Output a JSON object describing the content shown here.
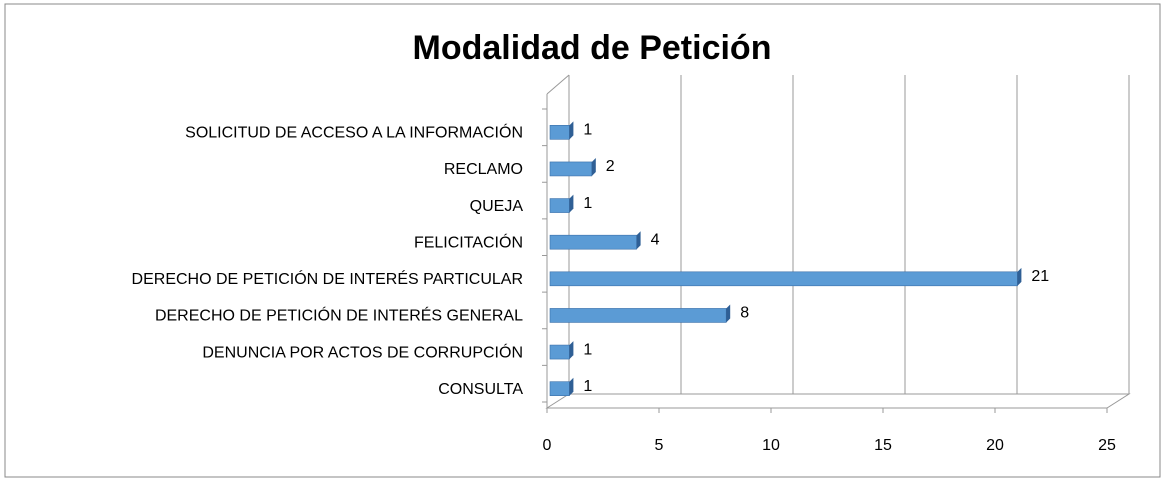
{
  "chart_data": {
    "type": "hbar",
    "title": "Modalidad de Petición",
    "categories": [
      "SOLICITUD DE ACCESO A LA INFORMACIÓN",
      "RECLAMO",
      "QUEJA",
      "FELICITACIÓN",
      "DERECHO DE PETICIÓN DE INTERÉS PARTICULAR",
      "DERECHO DE PETICIÓN DE INTERÉS GENERAL",
      "DENUNCIA POR ACTOS DE CORRUPCIÓN",
      "CONSULTA"
    ],
    "values": [
      1,
      2,
      1,
      4,
      21,
      8,
      1,
      1
    ],
    "color": "#5b9bd5",
    "xlim": [
      0,
      25
    ],
    "xticks": [
      0,
      5,
      10,
      15,
      20,
      25
    ],
    "grid": true
  }
}
